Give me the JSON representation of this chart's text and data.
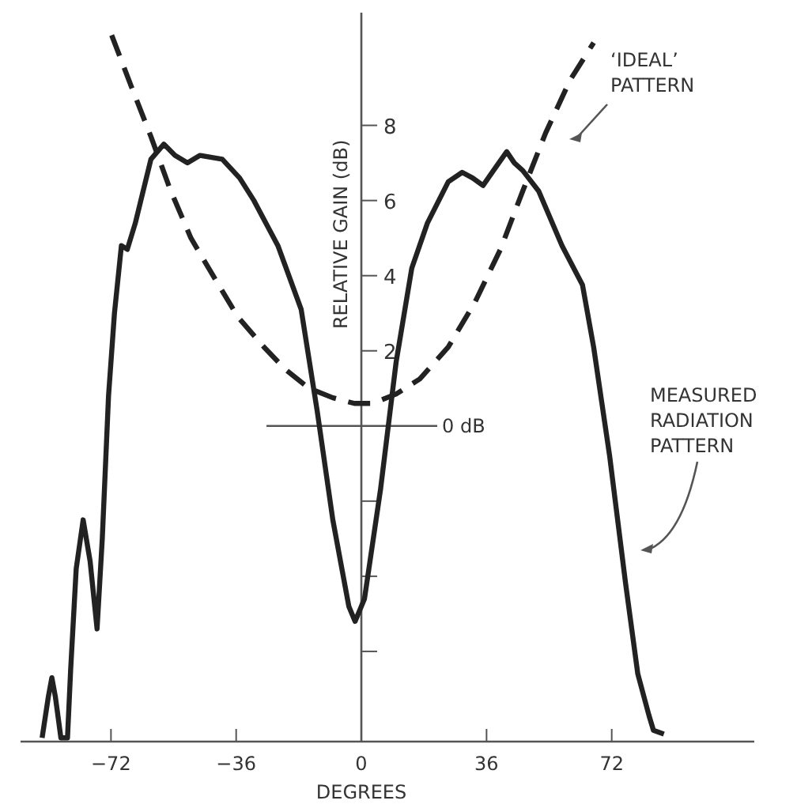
{
  "chart_data": {
    "type": "line",
    "xlabel": "DEGREES",
    "ylabel": "RELATIVE GAIN (dB)",
    "xlim": [
      -98,
      113
    ],
    "ylim": [
      -8.4,
      11
    ],
    "xticks": [
      -72,
      -36,
      0,
      36,
      72
    ],
    "yticks": [
      {
        "value": -6,
        "label": null
      },
      {
        "value": -4,
        "label": null
      },
      {
        "value": -2,
        "label": null
      },
      2,
      4,
      6,
      8
    ],
    "grid": false,
    "series": [
      {
        "color": "#222222",
        "line_style": "solid",
        "x": [
          -91.8,
          -90,
          -89,
          -88,
          -86.4,
          -84.5,
          -83.6,
          -82,
          -80,
          -78,
          -76,
          -74.5,
          -72.7,
          -71,
          -69,
          -67.3,
          -65,
          -60.5,
          -56.8,
          -53.6,
          -50,
          -46.4,
          -40,
          -35,
          -30.9,
          -24,
          -17.3,
          -12.7,
          -8.2,
          -3.6,
          -1.8,
          0.9,
          5.5,
          10,
          14.5,
          19,
          25,
          29,
          32,
          35,
          38,
          41.8,
          44,
          46.4,
          51,
          57.7,
          63.6,
          66.8,
          71.4,
          76,
          79.5,
          82.7,
          84,
          87
        ],
        "values": [
          -8.3,
          -7.2,
          -6.7,
          -7.2,
          -8.3,
          -8.3,
          -6.5,
          -3.8,
          -2.5,
          -3.6,
          -5.4,
          -3,
          0.8,
          3,
          4.8,
          4.7,
          5.4,
          7.1,
          7.5,
          7.2,
          7.0,
          7.2,
          7.1,
          6.6,
          6.0,
          4.8,
          3.1,
          0.4,
          -2.5,
          -4.8,
          -5.2,
          -4.6,
          -1.7,
          1.7,
          4.2,
          5.4,
          6.5,
          6.75,
          6.6,
          6.4,
          6.8,
          7.3,
          7.0,
          6.8,
          6.25,
          4.8,
          3.75,
          2.1,
          -0.8,
          -4.2,
          -6.6,
          -7.7,
          -8.1,
          -8.2
        ]
      },
      {
        "color": "#222222",
        "line_style": "dashed",
        "x": [
          -71.8,
          -66,
          -60.5,
          -55,
          -49,
          -42,
          -35.5,
          -28,
          -21.8,
          -15,
          -8.2,
          -2,
          3.2,
          10,
          16.8,
          25,
          32.7,
          40,
          46.4,
          53,
          60,
          66.8
        ],
        "values": [
          10.4,
          9,
          7.7,
          6.3,
          5,
          3.9,
          2.9,
          2.1,
          1.5,
          1.0,
          0.75,
          0.6,
          0.6,
          0.85,
          1.25,
          2.1,
          3.3,
          4.7,
          6.25,
          7.8,
          9.2,
          10.2
        ]
      }
    ],
    "ref_lines": [
      {
        "axis": "y",
        "value": 0,
        "label": "0 dB",
        "color": "#555555"
      }
    ],
    "annotations": [
      "‘IDEAL’ PATTERN",
      "MEASURED RADIATION PATTERN"
    ]
  }
}
